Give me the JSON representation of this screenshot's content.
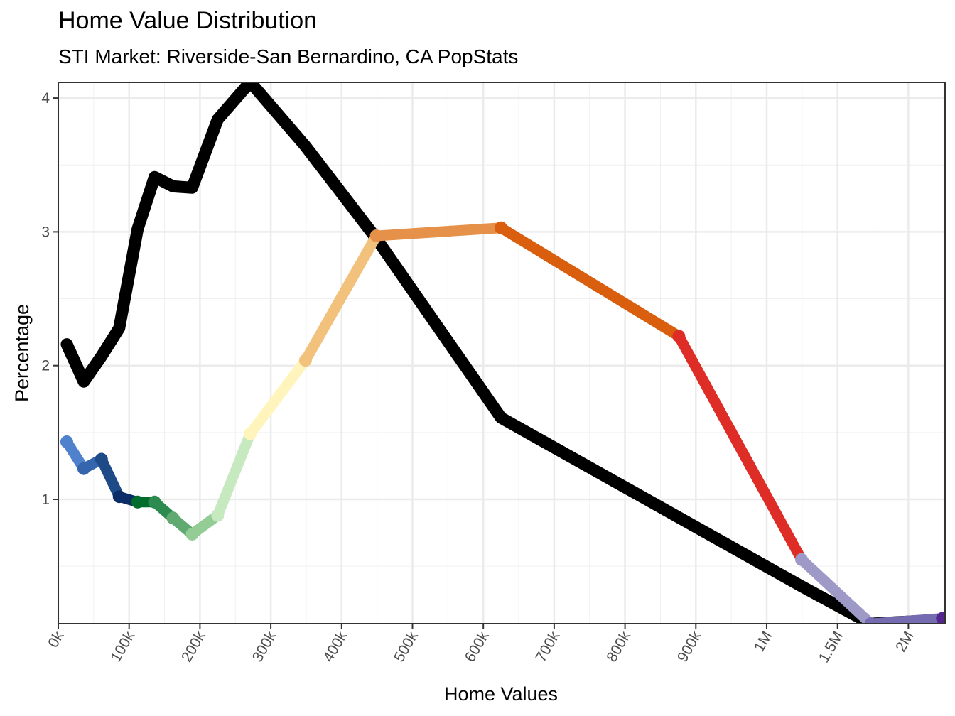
{
  "chart_data": {
    "type": "line",
    "title": "Home Value Distribution",
    "subtitle": "STI Market: Riverside-San Bernardino, CA PopStats",
    "xlabel": "Home Values",
    "ylabel": "Percentage",
    "grid": true,
    "ylim": [
      0.07,
      4.12
    ],
    "x_ticks": [
      {
        "value": 0,
        "label": "0k"
      },
      {
        "value": 100000,
        "label": "100k"
      },
      {
        "value": 200000,
        "label": "200k"
      },
      {
        "value": 300000,
        "label": "300k"
      },
      {
        "value": 400000,
        "label": "400k"
      },
      {
        "value": 500000,
        "label": "500k"
      },
      {
        "value": 600000,
        "label": "600k"
      },
      {
        "value": 700000,
        "label": "700k"
      },
      {
        "value": 800000,
        "label": "800k"
      },
      {
        "value": 900000,
        "label": "900k"
      },
      {
        "value": 1000000,
        "label": "1M"
      },
      {
        "value": 1500000,
        "label": "1.5M"
      },
      {
        "value": 2000000,
        "label": "2M"
      }
    ],
    "y_ticks": [
      {
        "value": 1,
        "label": "1"
      },
      {
        "value": 2,
        "label": "2"
      },
      {
        "value": 3,
        "label": "3"
      },
      {
        "value": 4,
        "label": "4"
      }
    ],
    "x": [
      12000,
      36000,
      61000,
      86000,
      112000,
      136000,
      162000,
      189000,
      225000,
      271000,
      349000,
      449000,
      625000,
      876000,
      1246000,
      1735000,
      2240000
    ],
    "series": [
      {
        "color": "#000000",
        "values": [
          2.16,
          1.88,
          2.07,
          2.28,
          3.02,
          3.41,
          3.34,
          3.33,
          3.84,
          4.12,
          3.64,
          2.95,
          1.61,
          null,
          0.35,
          0.07,
          0.1
        ]
      },
      {
        "values": [
          1.43,
          1.23,
          1.3,
          1.02,
          0.98,
          0.98,
          0.86,
          0.74,
          0.88,
          1.49,
          2.04,
          2.97,
          3.03,
          2.22,
          0.55,
          0.07,
          0.11
        ],
        "segment_colors": [
          "#4f81cc",
          "#3566ad",
          "#1f4a88",
          "#0c2c67",
          "#006d2c",
          "#2e8b50",
          "#60a970",
          "#94cc95",
          "#c7e9c0",
          "#fff5bc",
          "#f2c27c",
          "#e6914a",
          "#d95f0e",
          "#de2d26",
          "#9e9ac8",
          "#756bb1"
        ],
        "end_color": "#54278f"
      }
    ]
  }
}
